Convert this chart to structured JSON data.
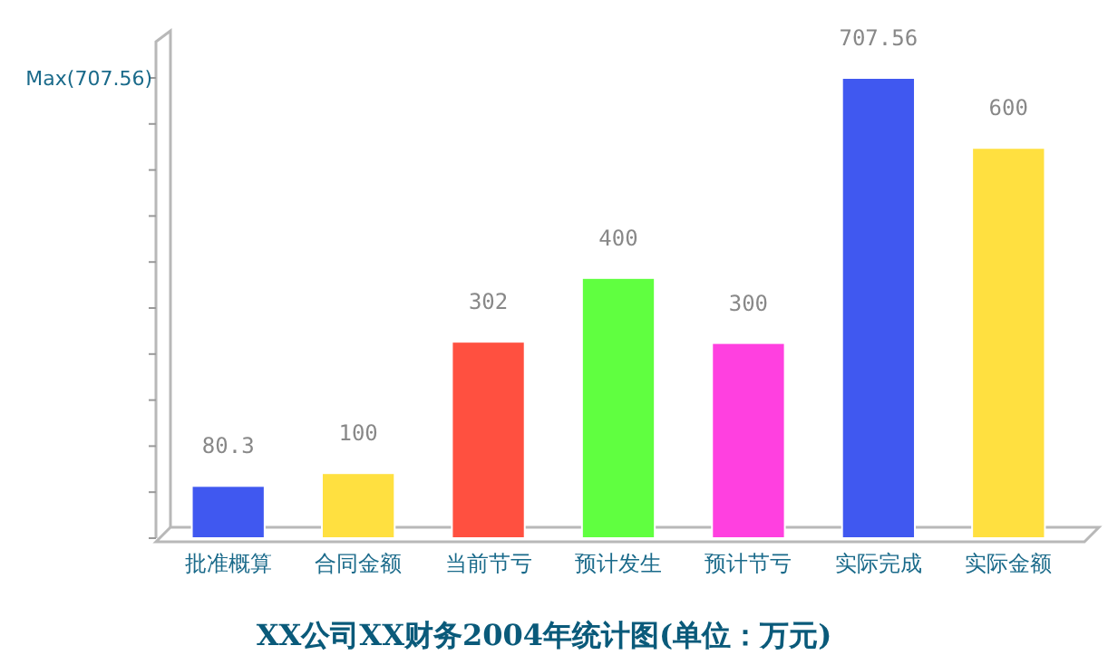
{
  "chart_data": {
    "type": "bar",
    "title": "XX公司XX财务2004年统计图(单位：万元)",
    "categories": [
      "批准概算",
      "合同金额",
      "当前节亏",
      "预计发生",
      "预计节亏",
      "实际完成",
      "实际金额"
    ],
    "values": [
      80.3,
      100,
      302,
      400,
      300,
      707.56,
      600
    ],
    "colors": [
      "#4058f0",
      "#ffe040",
      "#ff5040",
      "#60ff40",
      "#ff40e0",
      "#4058f0",
      "#ffe040"
    ],
    "ylim": [
      0,
      780
    ],
    "yticks": [
      {
        "value": 0,
        "label": null
      },
      {
        "value": 70.756,
        "label": null
      },
      {
        "value": 141.512,
        "label": null
      },
      {
        "value": 212.268,
        "label": null
      },
      {
        "value": 283.024,
        "label": null
      },
      {
        "value": 353.78,
        "label": null
      },
      {
        "value": 424.536,
        "label": null
      },
      {
        "value": 495.292,
        "label": null
      },
      {
        "value": 566.048,
        "label": null
      },
      {
        "value": 636.804,
        "label": null
      },
      {
        "value": 707.56,
        "label": "Max(707.56)"
      }
    ],
    "data_labels": true
  }
}
